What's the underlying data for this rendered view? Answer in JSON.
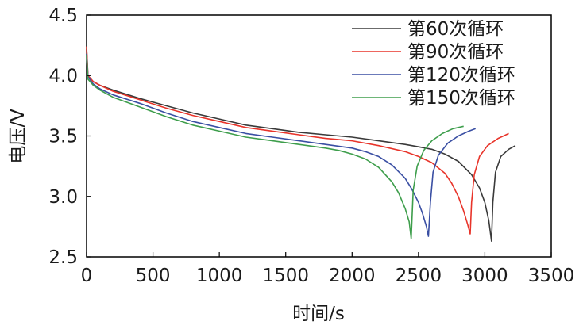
{
  "chart_data": {
    "type": "line",
    "title": "",
    "xlabel": "时间/s",
    "ylabel": "电压/V",
    "xlim": [
      0,
      3500
    ],
    "ylim": [
      2.5,
      4.5
    ],
    "grid": false,
    "legend_position": "top-right",
    "x_ticks": [
      "0",
      "500",
      "1000",
      "1500",
      "2000",
      "2500",
      "3000",
      "3500"
    ],
    "x_tick_values": [
      0,
      500,
      1000,
      1500,
      2000,
      2500,
      3000,
      3500
    ],
    "y_ticks": [
      "2.5",
      "3.0",
      "3.5",
      "4.0",
      "4.5"
    ],
    "y_tick_values": [
      2.5,
      3.0,
      3.5,
      4.0,
      4.5
    ],
    "series": [
      {
        "name": "第60次循环",
        "color": "#3a3a3a",
        "x": [
          0,
          10,
          50,
          100,
          200,
          400,
          600,
          800,
          1000,
          1200,
          1400,
          1600,
          1800,
          2000,
          2200,
          2400,
          2500,
          2600,
          2700,
          2800,
          2900,
          2960,
          3000,
          3030,
          3050,
          3060,
          3080,
          3120,
          3180,
          3230
        ],
        "y": [
          4.22,
          4.0,
          3.95,
          3.92,
          3.88,
          3.81,
          3.75,
          3.69,
          3.64,
          3.59,
          3.56,
          3.53,
          3.51,
          3.49,
          3.46,
          3.43,
          3.41,
          3.39,
          3.35,
          3.29,
          3.18,
          3.07,
          2.95,
          2.8,
          2.63,
          2.95,
          3.2,
          3.33,
          3.39,
          3.42
        ]
      },
      {
        "name": "第90次循环",
        "color": "#e8342a",
        "x": [
          0,
          10,
          50,
          100,
          200,
          400,
          600,
          800,
          1000,
          1200,
          1400,
          1600,
          1800,
          2000,
          2200,
          2400,
          2500,
          2600,
          2700,
          2750,
          2800,
          2840,
          2870,
          2890,
          2900,
          2920,
          2960,
          3020,
          3100,
          3180
        ],
        "y": [
          4.24,
          4.0,
          3.95,
          3.92,
          3.87,
          3.8,
          3.73,
          3.67,
          3.62,
          3.57,
          3.54,
          3.51,
          3.48,
          3.46,
          3.42,
          3.37,
          3.33,
          3.28,
          3.19,
          3.11,
          3.0,
          2.88,
          2.77,
          2.69,
          2.95,
          3.18,
          3.33,
          3.42,
          3.48,
          3.52
        ]
      },
      {
        "name": "第120次循环",
        "color": "#3a4fa3",
        "x": [
          0,
          10,
          50,
          100,
          200,
          400,
          600,
          800,
          1000,
          1200,
          1400,
          1600,
          1800,
          2000,
          2100,
          2200,
          2300,
          2400,
          2450,
          2500,
          2530,
          2560,
          2575,
          2590,
          2610,
          2650,
          2720,
          2800,
          2880,
          2930
        ],
        "y": [
          4.18,
          3.99,
          3.93,
          3.89,
          3.84,
          3.77,
          3.69,
          3.62,
          3.57,
          3.52,
          3.49,
          3.46,
          3.43,
          3.4,
          3.37,
          3.33,
          3.26,
          3.15,
          3.06,
          2.95,
          2.86,
          2.75,
          2.67,
          2.95,
          3.2,
          3.34,
          3.44,
          3.5,
          3.54,
          3.56
        ]
      },
      {
        "name": "第150次循环",
        "color": "#3e9e4c",
        "x": [
          0,
          10,
          50,
          100,
          200,
          400,
          600,
          800,
          1000,
          1200,
          1400,
          1600,
          1800,
          1900,
          2000,
          2100,
          2200,
          2300,
          2350,
          2400,
          2430,
          2445,
          2460,
          2490,
          2540,
          2600,
          2680,
          2760,
          2840
        ],
        "y": [
          4.17,
          3.97,
          3.92,
          3.88,
          3.82,
          3.74,
          3.66,
          3.59,
          3.54,
          3.49,
          3.46,
          3.43,
          3.4,
          3.38,
          3.35,
          3.31,
          3.24,
          3.12,
          3.03,
          2.9,
          2.79,
          2.65,
          3.05,
          3.25,
          3.38,
          3.46,
          3.52,
          3.56,
          3.58
        ]
      }
    ]
  }
}
